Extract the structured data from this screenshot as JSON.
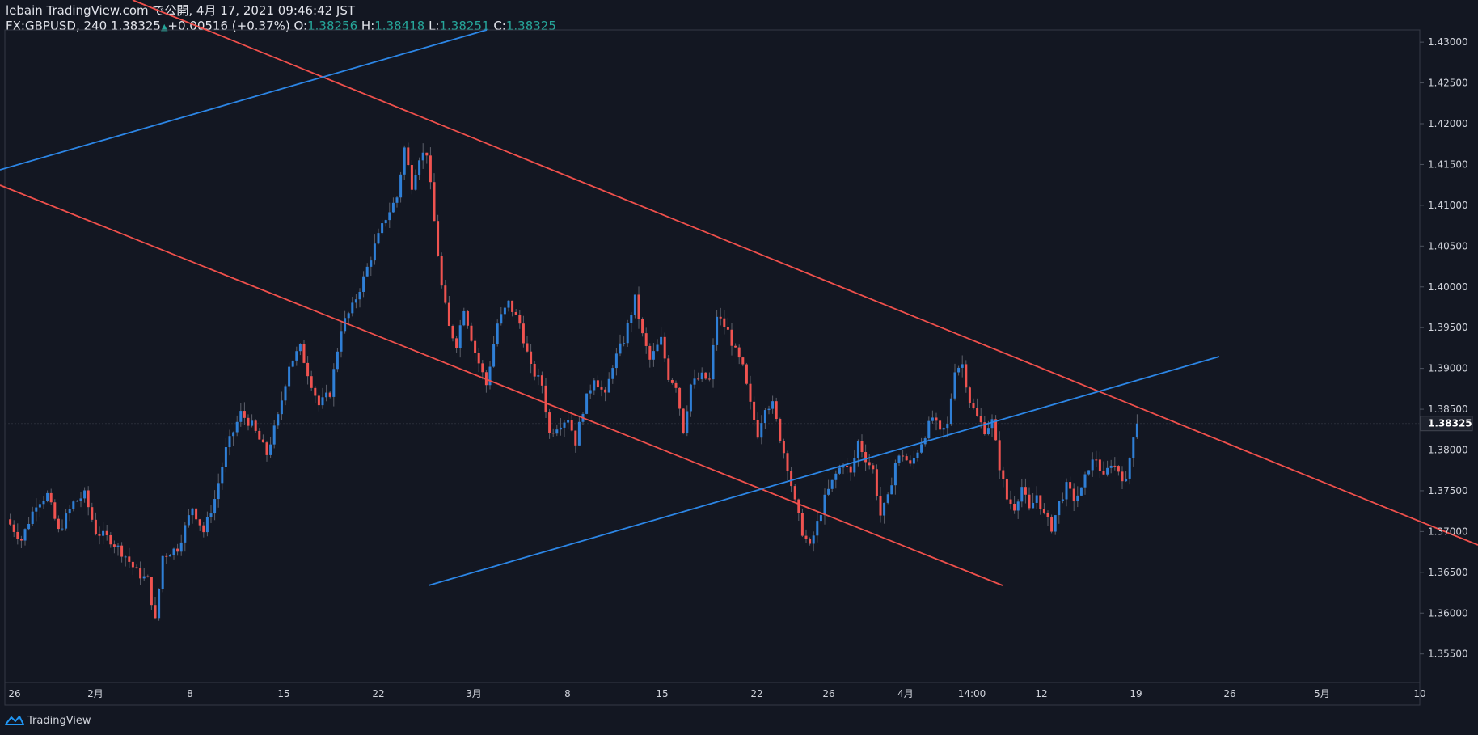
{
  "header": {
    "line1": "lebain TradingView.com で公開, 4月 17, 2021 09:46:42 JST",
    "symbol": "FX:GBPUSD, 240",
    "last": "1.38325",
    "change": "+0.00516 (+0.37%)",
    "o_label": "O:",
    "o_value": "1.38256",
    "h_label": "H:",
    "h_value": "1.38418",
    "l_label": "L:",
    "l_value": "1.38251",
    "c_label": "C:",
    "c_value": "1.38325"
  },
  "footer": {
    "brand": "TradingView"
  },
  "colors": {
    "background": "#131722",
    "up": "#2f7fd6",
    "down": "#ef5350",
    "trend_red": "#f0504c",
    "trend_blue": "#2c86e6",
    "grid": "#363a45"
  },
  "chart_data": {
    "type": "candlestick",
    "symbol": "GBPUSD",
    "timeframe": "240",
    "ylim": [
      1.3515,
      1.4315
    ],
    "y_ticks": [
      "1.43000",
      "1.42500",
      "1.42000",
      "1.41500",
      "1.41000",
      "1.40500",
      "1.40000",
      "1.39500",
      "1.39000",
      "1.38500",
      "1.38000",
      "1.37500",
      "1.37000",
      "1.36500",
      "1.36000",
      "1.35500"
    ],
    "last_price_label": "1.38325",
    "last_price": 1.38325,
    "x_ticks": [
      "26",
      "2月",
      "8",
      "15",
      "22",
      "3月",
      "8",
      "15",
      "22",
      "26",
      "4月",
      "14:00",
      "12",
      "19",
      "26",
      "5月",
      "10"
    ],
    "price_path": [
      [
        0,
        1.3715
      ],
      [
        4,
        1.369
      ],
      [
        8,
        1.3735
      ],
      [
        11,
        1.3745
      ],
      [
        14,
        1.37
      ],
      [
        18,
        1.3735
      ],
      [
        21,
        1.3745
      ],
      [
        24,
        1.37
      ],
      [
        28,
        1.369
      ],
      [
        32,
        1.367
      ],
      [
        35,
        1.365
      ],
      [
        38,
        1.364
      ],
      [
        40,
        1.359
      ],
      [
        42,
        1.367
      ],
      [
        46,
        1.368
      ],
      [
        50,
        1.373
      ],
      [
        53,
        1.37
      ],
      [
        56,
        1.374
      ],
      [
        59,
        1.38
      ],
      [
        63,
        1.3845
      ],
      [
        66,
        1.383
      ],
      [
        70,
        1.3795
      ],
      [
        73,
        1.384
      ],
      [
        76,
        1.3905
      ],
      [
        79,
        1.3925
      ],
      [
        81,
        1.3895
      ],
      [
        84,
        1.3855
      ],
      [
        87,
        1.387
      ],
      [
        90,
        1.395
      ],
      [
        93,
        1.3975
      ],
      [
        96,
        1.401
      ],
      [
        99,
        1.405
      ],
      [
        102,
        1.4085
      ],
      [
        105,
        1.411
      ],
      [
        107,
        1.417
      ],
      [
        109,
        1.4125
      ],
      [
        111,
        1.416
      ],
      [
        113,
        1.4165
      ],
      [
        115,
        1.408
      ],
      [
        117,
        1.4
      ],
      [
        119,
        1.395
      ],
      [
        121,
        1.393
      ],
      [
        123,
        1.3975
      ],
      [
        126,
        1.392
      ],
      [
        129,
        1.388
      ],
      [
        132,
        1.3955
      ],
      [
        135,
        1.398
      ],
      [
        138,
        1.3955
      ],
      [
        141,
        1.39
      ],
      [
        144,
        1.388
      ],
      [
        146,
        1.382
      ],
      [
        148,
        1.383
      ],
      [
        151,
        1.384
      ],
      [
        153,
        1.381
      ],
      [
        155,
        1.385
      ],
      [
        158,
        1.389
      ],
      [
        161,
        1.3865
      ],
      [
        163,
        1.3905
      ],
      [
        166,
        1.3935
      ],
      [
        169,
        1.3985
      ],
      [
        171,
        1.394
      ],
      [
        173,
        1.391
      ],
      [
        176,
        1.3935
      ],
      [
        178,
        1.389
      ],
      [
        180,
        1.388
      ],
      [
        182,
        1.3825
      ],
      [
        184,
        1.388
      ],
      [
        187,
        1.389
      ],
      [
        189,
        1.3885
      ],
      [
        191,
        1.3965
      ],
      [
        194,
        1.3945
      ],
      [
        196,
        1.392
      ],
      [
        198,
        1.39
      ],
      [
        200,
        1.3855
      ],
      [
        202,
        1.382
      ],
      [
        204,
        1.3855
      ],
      [
        206,
        1.3855
      ],
      [
        208,
        1.3815
      ],
      [
        210,
        1.378
      ],
      [
        212,
        1.3735
      ],
      [
        214,
        1.37
      ],
      [
        216,
        1.368
      ],
      [
        218,
        1.371
      ],
      [
        220,
        1.374
      ],
      [
        223,
        1.377
      ],
      [
        225,
        1.3785
      ],
      [
        227,
        1.377
      ],
      [
        229,
        1.381
      ],
      [
        231,
        1.379
      ],
      [
        233,
        1.3775
      ],
      [
        235,
        1.372
      ],
      [
        237,
        1.374
      ],
      [
        239,
        1.3785
      ],
      [
        241,
        1.3795
      ],
      [
        243,
        1.378
      ],
      [
        245,
        1.38
      ],
      [
        247,
        1.382
      ],
      [
        249,
        1.384
      ],
      [
        251,
        1.382
      ],
      [
        253,
        1.383
      ],
      [
        255,
        1.39
      ],
      [
        257,
        1.3905
      ],
      [
        259,
        1.386
      ],
      [
        261,
        1.384
      ],
      [
        263,
        1.3825
      ],
      [
        265,
        1.3835
      ],
      [
        267,
        1.378
      ],
      [
        269,
        1.374
      ],
      [
        271,
        1.373
      ],
      [
        273,
        1.3755
      ],
      [
        275,
        1.3725
      ],
      [
        277,
        1.3745
      ],
      [
        279,
        1.372
      ],
      [
        281,
        1.3705
      ],
      [
        283,
        1.3735
      ],
      [
        285,
        1.3755
      ],
      [
        287,
        1.374
      ],
      [
        289,
        1.375
      ],
      [
        291,
        1.378
      ],
      [
        293,
        1.379
      ],
      [
        295,
        1.3765
      ],
      [
        297,
        1.3785
      ],
      [
        299,
        1.3775
      ],
      [
        301,
        1.376
      ],
      [
        303,
        1.382
      ],
      [
        304,
        1.38325
      ]
    ],
    "trendlines": [
      {
        "color": "red",
        "points": [
          [
            164,
            0
          ],
          [
            1828,
            674
          ]
        ]
      },
      {
        "color": "red",
        "points": [
          [
            0,
            229
          ],
          [
            1240,
            724
          ]
        ]
      },
      {
        "color": "blue",
        "points": [
          [
            0,
            210
          ],
          [
            602,
            37
          ]
        ]
      },
      {
        "color": "blue",
        "points": [
          [
            530,
            724
          ],
          [
            1508,
            441
          ]
        ]
      }
    ]
  }
}
